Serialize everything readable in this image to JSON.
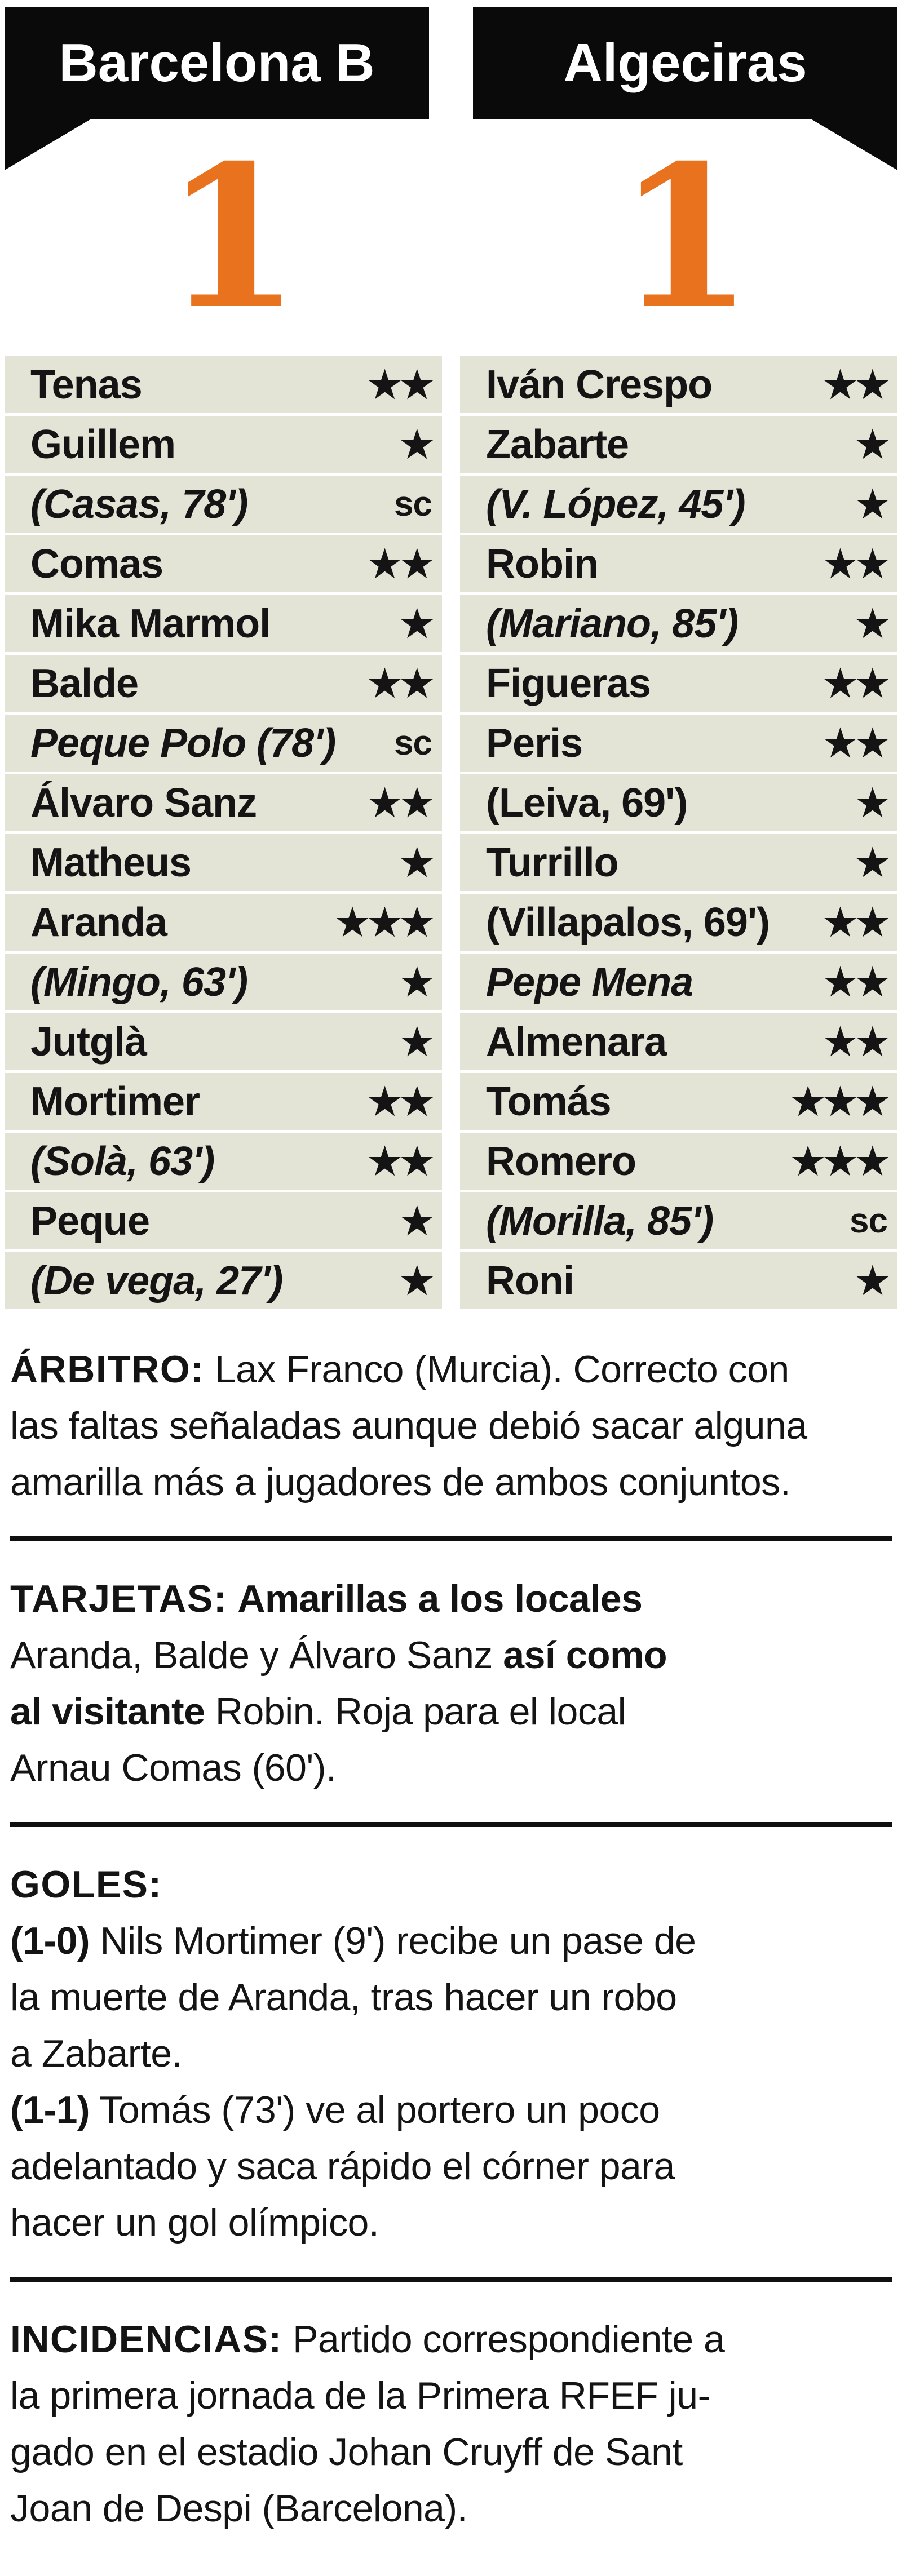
{
  "colors": {
    "banner_black": "#0a0a0a",
    "score_orange": "#e8721e",
    "row_background": "#e4e4d6",
    "text": "#141414",
    "divider": "#101010"
  },
  "legend": {
    "star_symbol": "★",
    "sc_label": "sc"
  },
  "header": {
    "home_team": "Barcelona B",
    "away_team": "Algeciras",
    "home_score": "1",
    "away_score": "1"
  },
  "lineups": {
    "home": [
      {
        "name": "Tenas",
        "stars": 2,
        "sc": false,
        "italic": false
      },
      {
        "name": "Guillem",
        "stars": 1,
        "sc": false,
        "italic": false
      },
      {
        "name": "(Casas, 78')",
        "stars": 0,
        "sc": true,
        "italic": true
      },
      {
        "name": "Comas",
        "stars": 2,
        "sc": false,
        "italic": false
      },
      {
        "name": "Mika Marmol",
        "stars": 1,
        "sc": false,
        "italic": false
      },
      {
        "name": "Balde",
        "stars": 2,
        "sc": false,
        "italic": false
      },
      {
        "name": "Peque Polo (78')",
        "stars": 0,
        "sc": true,
        "italic": true
      },
      {
        "name": "Álvaro Sanz",
        "stars": 2,
        "sc": false,
        "italic": false
      },
      {
        "name": "Matheus",
        "stars": 1,
        "sc": false,
        "italic": false
      },
      {
        "name": "Aranda",
        "stars": 3,
        "sc": false,
        "italic": false
      },
      {
        "name": "(Mingo, 63')",
        "stars": 1,
        "sc": false,
        "italic": true
      },
      {
        "name": "Jutglà",
        "stars": 1,
        "sc": false,
        "italic": false
      },
      {
        "name": "Mortimer",
        "stars": 2,
        "sc": false,
        "italic": false
      },
      {
        "name": "(Solà, 63')",
        "stars": 2,
        "sc": false,
        "italic": true
      },
      {
        "name": "Peque",
        "stars": 1,
        "sc": false,
        "italic": false
      },
      {
        "name": "(De vega, 27')",
        "stars": 1,
        "sc": false,
        "italic": true
      }
    ],
    "away": [
      {
        "name": "Iván Crespo",
        "stars": 2,
        "sc": false,
        "italic": false
      },
      {
        "name": "Zabarte",
        "stars": 1,
        "sc": false,
        "italic": false
      },
      {
        "name": "(V. López, 45')",
        "stars": 1,
        "sc": false,
        "italic": true
      },
      {
        "name": "Robin",
        "stars": 2,
        "sc": false,
        "italic": false
      },
      {
        "name": "(Mariano, 85')",
        "stars": 1,
        "sc": false,
        "italic": true
      },
      {
        "name": "Figueras",
        "stars": 2,
        "sc": false,
        "italic": false
      },
      {
        "name": "Peris",
        "stars": 2,
        "sc": false,
        "italic": false
      },
      {
        "name": "(Leiva, 69')",
        "stars": 1,
        "sc": false,
        "italic": false
      },
      {
        "name": "Turrillo",
        "stars": 1,
        "sc": false,
        "italic": false
      },
      {
        "name": "(Villapalos, 69')",
        "stars": 2,
        "sc": false,
        "italic": false
      },
      {
        "name": "Pepe Mena",
        "stars": 2,
        "sc": false,
        "italic": true
      },
      {
        "name": "Almenara",
        "stars": 2,
        "sc": false,
        "italic": false
      },
      {
        "name": "Tomás",
        "stars": 3,
        "sc": false,
        "italic": false
      },
      {
        "name": "Romero",
        "stars": 3,
        "sc": false,
        "italic": false
      },
      {
        "name": "(Morilla, 85')",
        "stars": 0,
        "sc": true,
        "italic": true
      },
      {
        "name": "Roni",
        "stars": 1,
        "sc": false,
        "italic": false
      }
    ]
  },
  "sections": [
    {
      "id": "arbitro",
      "segments": [
        {
          "t": "ÁRBITRO:",
          "b": true,
          "label": true
        },
        {
          "t": " Lax Franco (Murcia). Correcto con\nlas faltas señaladas aunque debió sacar alguna\namarilla más a jugadores de ambos conjuntos."
        }
      ]
    },
    {
      "id": "tarjetas",
      "segments": [
        {
          "t": "TARJETAS:",
          "b": true,
          "label": true
        },
        {
          "t": " "
        },
        {
          "t": "Amarillas a los locales",
          "b": true
        },
        {
          "t": "\nAranda, Balde y Álvaro Sanz "
        },
        {
          "t": "así como",
          "b": true
        },
        {
          "t": "\n"
        },
        {
          "t": "al visitante",
          "b": true
        },
        {
          "t": " Robin. Roja para el local\nArnau Comas (60')."
        }
      ]
    },
    {
      "id": "goles",
      "segments": [
        {
          "t": "GOLES:",
          "b": true,
          "label": true
        },
        {
          "t": "\n"
        },
        {
          "t": "(1-0)",
          "b": true
        },
        {
          "t": " Nils Mortimer (9') recibe un pase de\nla muerte de Aranda, tras hacer un robo\na Zabarte.\n"
        },
        {
          "t": "(1-1)",
          "b": true
        },
        {
          "t": " Tomás (73') ve al portero un poco\nadelantado y saca rápido el córner para\nhacer un gol olímpico."
        }
      ]
    },
    {
      "id": "incidencias",
      "segments": [
        {
          "t": "INCIDENCIAS:",
          "b": true,
          "label": true
        },
        {
          "t": " Partido correspondiente a\nla primera jornada de la Primera RFEF ju-\ngado en el estadio Johan Cruyff de Sant\nJoan de Despi (Barcelona)."
        }
      ]
    }
  ]
}
